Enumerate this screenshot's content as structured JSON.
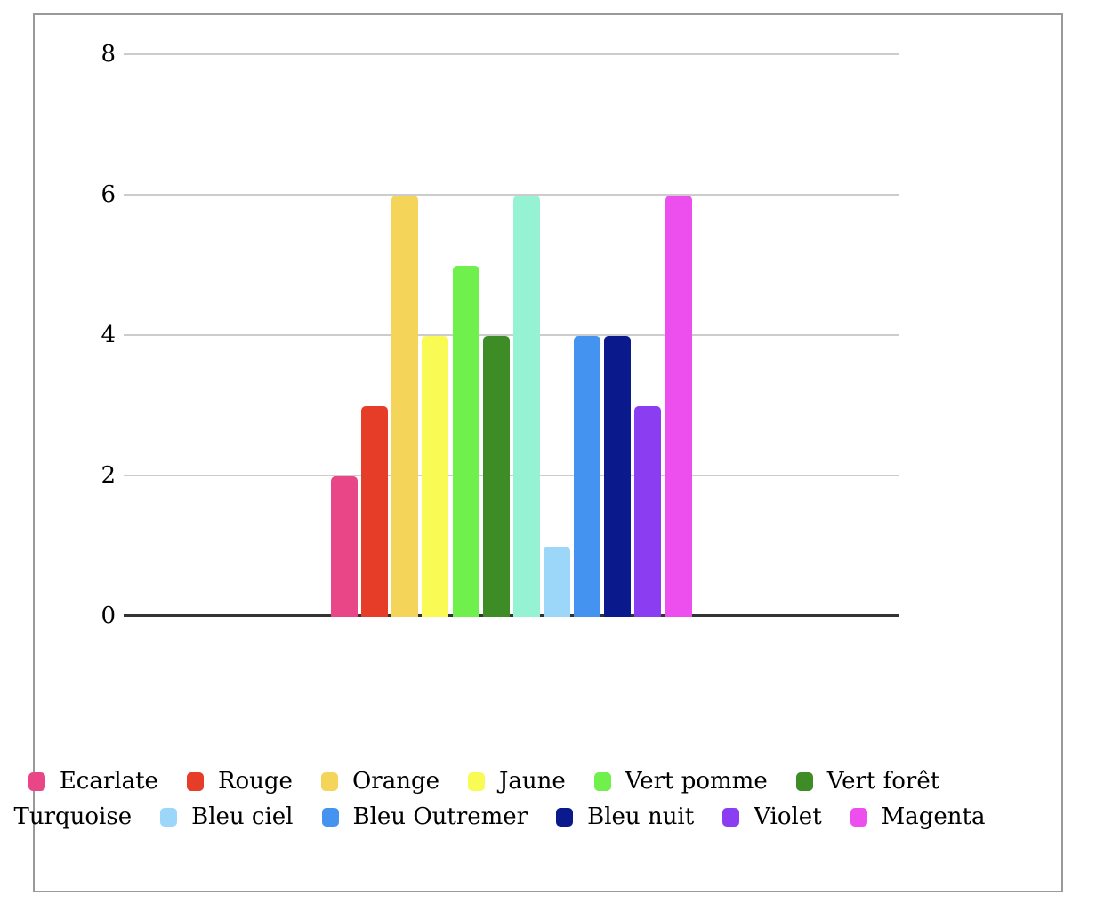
{
  "chart_data": {
    "type": "bar",
    "title": "",
    "xlabel": "",
    "ylabel": "",
    "categories": [
      "Ecarlate",
      "Rouge",
      "Orange",
      "Jaune",
      "Vert pomme",
      "Vert forêt",
      "Turquoise",
      "Bleu ciel",
      "Bleu Outremer",
      "Bleu nuit",
      "Violet",
      "Magenta"
    ],
    "values": [
      2,
      3,
      6,
      4,
      5,
      4,
      6,
      1,
      4,
      4,
      3,
      6
    ],
    "colors": [
      "#E94687",
      "#E63D28",
      "#F5D45A",
      "#FAFA55",
      "#6FF04D",
      "#3D8C26",
      "#95F3D3",
      "#9CD6F9",
      "#4493F0",
      "#0A1A8C",
      "#8B3DF2",
      "#ED4EEE"
    ],
    "ylim": [
      0,
      8
    ],
    "yticks": [
      0,
      2,
      4,
      6,
      8
    ],
    "ytick_labels": [
      "0",
      "2",
      "4",
      "6",
      "8"
    ],
    "grid": "horizontal",
    "legend_position": "bottom",
    "legend_rows": [
      6,
      6
    ]
  },
  "style_colors": {
    "frame_border": "#9a9a9a",
    "gridline": "#cccccc",
    "axis_line": "#333333",
    "text": "#000000",
    "background": "#ffffff"
  }
}
